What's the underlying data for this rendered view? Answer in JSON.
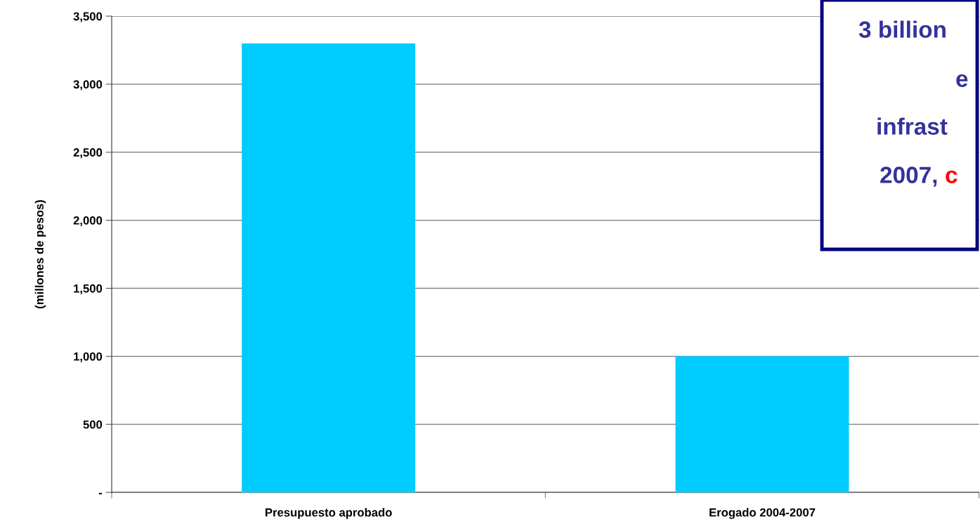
{
  "chart_data": {
    "type": "bar",
    "ylabel": "(millones de pesos)",
    "categories": [
      "Presupuesto aprobado",
      "Erogado 2004-2007"
    ],
    "values": [
      3300,
      1000
    ],
    "color": "#00ccff",
    "ylim": [
      0,
      3500
    ],
    "yticks": [
      {
        "value": 0,
        "label": "-"
      },
      500,
      {
        "value": 1000,
        "label": "1,000"
      },
      {
        "value": 1500,
        "label": "1,500"
      },
      {
        "value": 2000,
        "label": "2,000"
      },
      {
        "value": 2500,
        "label": "2,500"
      },
      {
        "value": 3000,
        "label": "3,000"
      },
      {
        "value": 3500,
        "label": "3,500"
      }
    ],
    "grid": "y",
    "annotations": [
      "3 billion",
      "e",
      "infrast",
      "2007, ",
      "c"
    ]
  }
}
